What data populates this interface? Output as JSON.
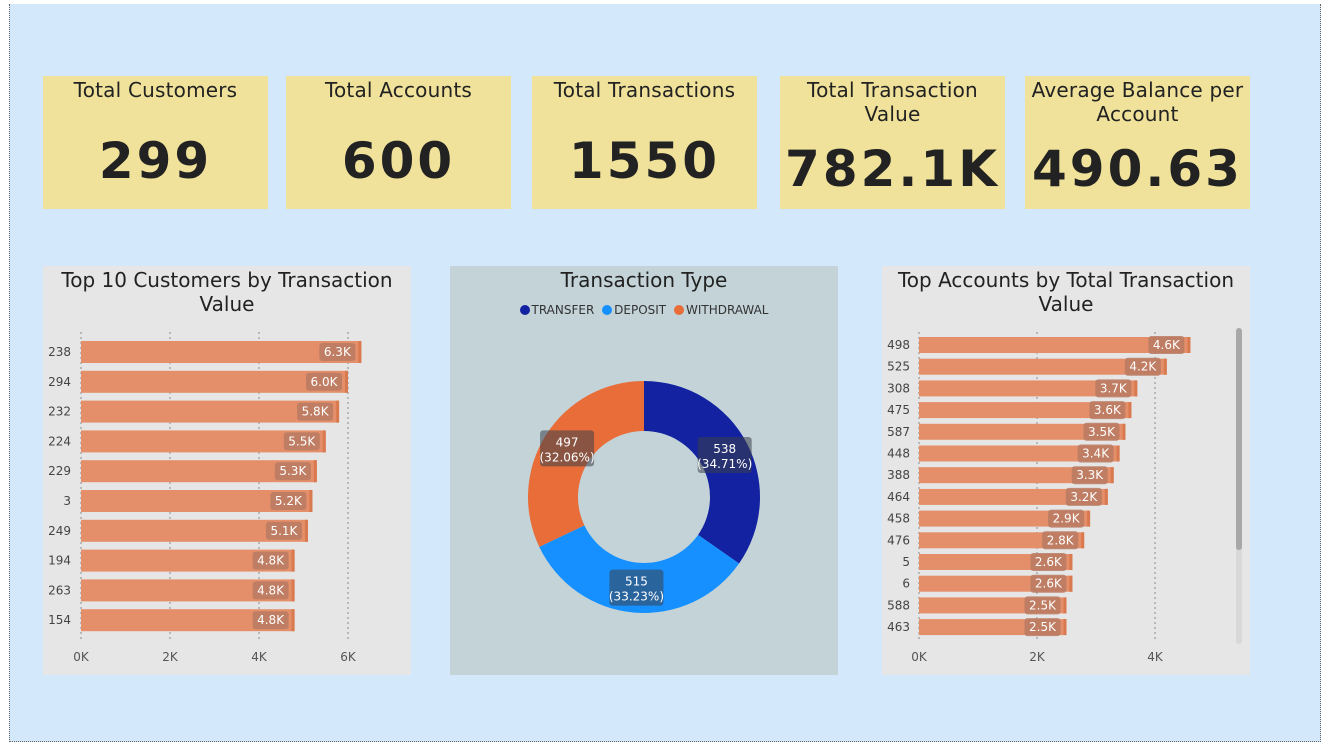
{
  "kpis": [
    {
      "title": "Total Customers",
      "value": "299"
    },
    {
      "title": "Total Accounts",
      "value": "600"
    },
    {
      "title": "Total Transactions",
      "value": "1550"
    },
    {
      "title": "Total Transaction Value",
      "value": "782.1K"
    },
    {
      "title": "Average Balance per Account",
      "value": "490.63"
    }
  ],
  "colors": {
    "canvas": "#d4e8fb",
    "kpi_card": "#f0e29a",
    "bar": "#e58f6a",
    "transfer": "#1222a0",
    "deposit": "#1690ff",
    "withdrawal": "#e86d38"
  },
  "chart_data": [
    {
      "type": "bar",
      "orientation": "horizontal",
      "title": "Top 10 Customers by Transaction Value",
      "categories": [
        "238",
        "294",
        "232",
        "224",
        "229",
        "3",
        "249",
        "194",
        "263",
        "154"
      ],
      "values": [
        6300,
        6000,
        5800,
        5500,
        5300,
        5200,
        5100,
        4800,
        4800,
        4800
      ],
      "data_labels": [
        "6.3K",
        "6.0K",
        "5.8K",
        "5.5K",
        "5.3K",
        "5.2K",
        "5.1K",
        "4.8K",
        "4.8K",
        "4.8K"
      ],
      "x_ticks": [
        "0K",
        "2K",
        "4K",
        "6K"
      ],
      "xlim": [
        0,
        6000
      ],
      "grid": true
    },
    {
      "type": "pie",
      "variant": "donut",
      "title": "Transaction Type",
      "legend": [
        "TRANSFER",
        "DEPOSIT",
        "WITHDRAWAL"
      ],
      "legend_position": "top",
      "slices": [
        {
          "name": "TRANSFER",
          "value": 538,
          "label": "538",
          "pct": "(34.71%)"
        },
        {
          "name": "DEPOSIT",
          "value": 515,
          "label": "515",
          "pct": "(33.23%)"
        },
        {
          "name": "WITHDRAWAL",
          "value": 497,
          "label": "497",
          "pct": "(32.06%)"
        }
      ]
    },
    {
      "type": "bar",
      "orientation": "horizontal",
      "title": "Top Accounts by Total Transaction Value",
      "categories": [
        "498",
        "525",
        "308",
        "475",
        "587",
        "448",
        "388",
        "464",
        "458",
        "476",
        "5",
        "6",
        "588",
        "463"
      ],
      "values": [
        4600,
        4200,
        3700,
        3600,
        3500,
        3400,
        3300,
        3200,
        2900,
        2800,
        2600,
        2600,
        2500,
        2500
      ],
      "data_labels": [
        "4.6K",
        "4.2K",
        "3.7K",
        "3.6K",
        "3.5K",
        "3.4K",
        "3.3K",
        "3.2K",
        "2.9K",
        "2.8K",
        "2.6K",
        "2.6K",
        "2.5K",
        "2.5K"
      ],
      "x_ticks": [
        "0K",
        "2K",
        "4K"
      ],
      "xlim": [
        0,
        4000
      ],
      "grid": true,
      "scrollable": true
    }
  ]
}
